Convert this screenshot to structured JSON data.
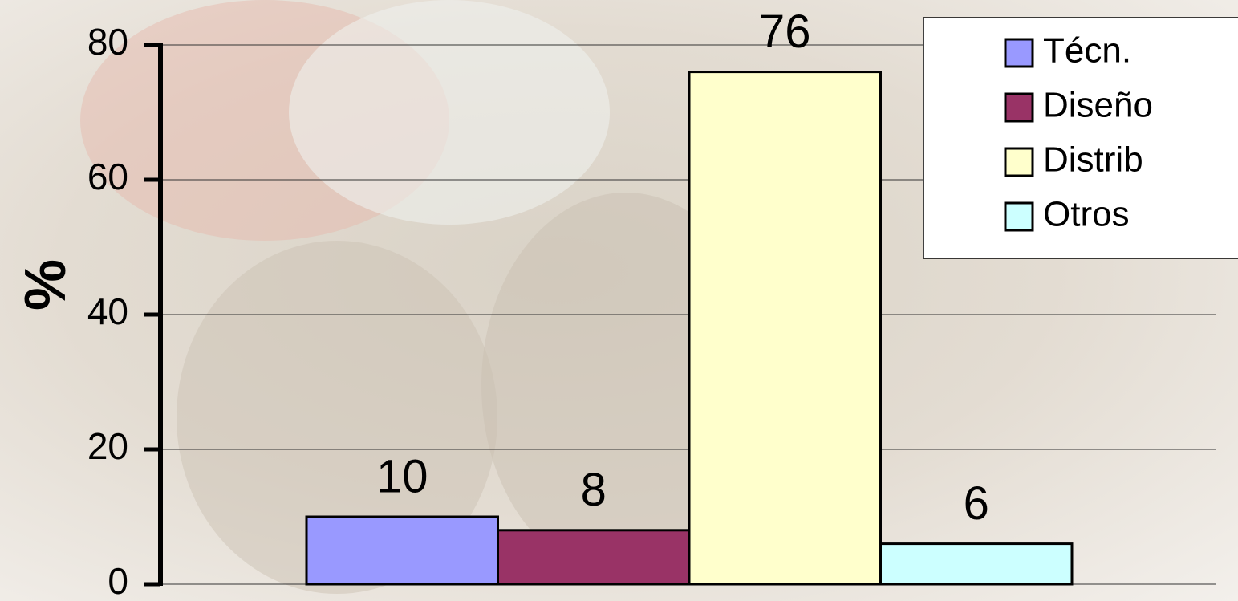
{
  "chart_data": {
    "type": "bar",
    "y_label": "%",
    "categories": [
      null
    ],
    "series": [
      {
        "name": "Técn.",
        "color": "#9999ff",
        "values": [
          10
        ]
      },
      {
        "name": "Diseño",
        "color": "#993366",
        "values": [
          8
        ]
      },
      {
        "name": "Distrib",
        "color": "#ffffcc",
        "values": [
          76
        ]
      },
      {
        "name": "Otros",
        "color": "#ccffff",
        "values": [
          6
        ]
      }
    ],
    "ylim": [
      0,
      80
    ],
    "yticks": [
      0,
      20,
      40,
      60,
      80
    ],
    "grid": true,
    "legend": "top-right"
  }
}
